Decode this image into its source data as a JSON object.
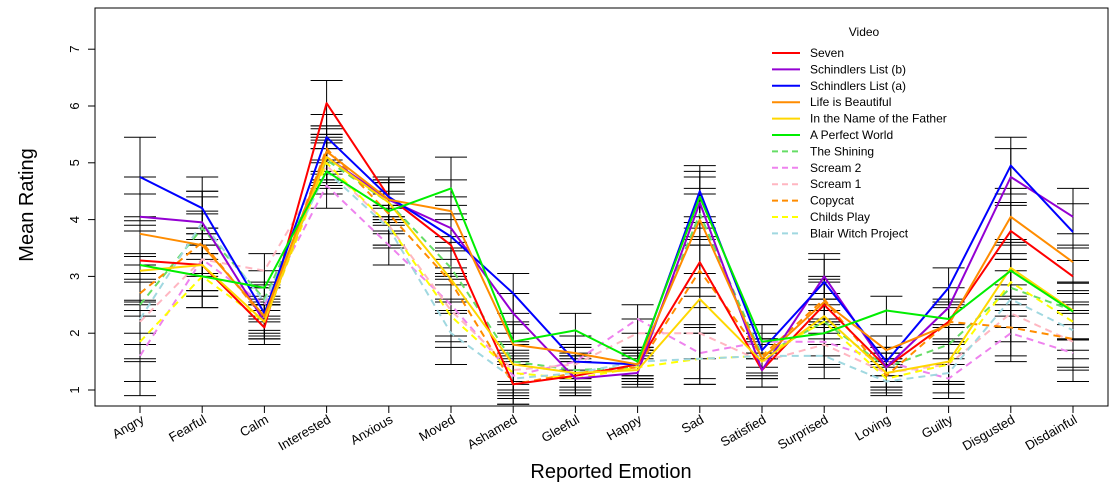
{
  "chart_data": {
    "type": "line",
    "xlabel": "Reported Emotion",
    "ylabel": "Mean Rating",
    "ylim": [
      0.75,
      7.8
    ],
    "yticks": [
      1,
      2,
      3,
      4,
      5,
      6,
      7
    ],
    "categories": [
      "Angry",
      "Fearful",
      "Calm",
      "Interested",
      "Anxious",
      "Moved",
      "Ashamed",
      "Gleeful",
      "Happy",
      "Sad",
      "Satisfied",
      "Surprised",
      "Loving",
      "Guilty",
      "Disgusted",
      "Disdainful"
    ],
    "legend": {
      "title": "Video",
      "position": "top-right"
    },
    "error_bars": true,
    "series": [
      {
        "name": "Seven",
        "color": "#ff0000",
        "dash": "solid",
        "values": [
          3.28,
          3.2,
          2.1,
          6.05,
          4.4,
          3.55,
          1.1,
          1.25,
          1.45,
          3.25,
          1.35,
          2.5,
          1.4,
          2.2,
          3.8,
          3.0
        ]
      },
      {
        "name": "Schindlers List (b)",
        "color": "#9400d3",
        "dash": "solid",
        "values": [
          4.05,
          3.95,
          2.2,
          5.1,
          4.35,
          3.85,
          2.35,
          1.2,
          1.3,
          4.3,
          1.35,
          3.0,
          1.4,
          2.45,
          4.75,
          4.05
        ]
      },
      {
        "name": "Schindlers List (a)",
        "color": "#0000ff",
        "dash": "solid",
        "values": [
          4.75,
          4.2,
          2.35,
          5.45,
          4.4,
          3.7,
          2.7,
          1.5,
          1.45,
          4.5,
          1.7,
          2.9,
          1.5,
          2.8,
          4.95,
          3.78
        ]
      },
      {
        "name": "Life is Beautiful",
        "color": "#ff8c00",
        "dash": "solid",
        "values": [
          3.75,
          3.55,
          2.3,
          5.2,
          4.35,
          4.15,
          1.8,
          1.65,
          1.45,
          4.0,
          1.55,
          2.55,
          1.7,
          2.15,
          4.05,
          3.25
        ]
      },
      {
        "name": "In the Name of the Father",
        "color": "#ffd700",
        "dash": "solid",
        "values": [
          3.1,
          3.2,
          2.2,
          5.1,
          4.3,
          2.95,
          1.45,
          1.3,
          1.35,
          2.6,
          1.5,
          2.3,
          1.3,
          1.5,
          3.15,
          2.4
        ]
      },
      {
        "name": "A Perfect World",
        "color": "#00ee00",
        "dash": "solid",
        "values": [
          3.2,
          3.0,
          2.8,
          4.85,
          4.15,
          4.55,
          1.85,
          2.05,
          1.5,
          4.4,
          1.85,
          2.0,
          2.4,
          2.25,
          3.1,
          2.38
        ]
      },
      {
        "name": "The Shining",
        "color": "#66dd66",
        "dash": "dashed",
        "values": [
          2.5,
          3.85,
          2.6,
          5.05,
          4.3,
          3.15,
          1.5,
          1.35,
          1.4,
          4.1,
          1.6,
          2.2,
          1.4,
          1.8,
          2.8,
          2.4
        ]
      },
      {
        "name": "Scream 2",
        "color": "#ee82ee",
        "dash": "dashed",
        "values": [
          1.6,
          3.3,
          2.5,
          4.6,
          3.55,
          2.5,
          1.25,
          1.5,
          2.25,
          1.65,
          1.85,
          1.85,
          1.5,
          1.2,
          2.0,
          1.65
        ]
      },
      {
        "name": "Scream 1",
        "color": "#ffb6c1",
        "dash": "dashed",
        "values": [
          2.2,
          3.3,
          3.1,
          4.95,
          3.9,
          2.4,
          1.35,
          1.45,
          2.0,
          2.0,
          1.5,
          1.8,
          1.3,
          1.45,
          2.35,
          1.85
        ]
      },
      {
        "name": "Copycat",
        "color": "#ff8c00",
        "dash": "dashed",
        "values": [
          2.7,
          3.6,
          2.25,
          5.25,
          4.1,
          2.9,
          1.1,
          1.3,
          1.4,
          3.1,
          1.6,
          2.6,
          1.25,
          2.2,
          2.1,
          1.9
        ]
      },
      {
        "name": "Childs Play",
        "color": "#ffff00",
        "dash": "dashed",
        "values": [
          1.85,
          3.0,
          2.2,
          5.0,
          3.9,
          2.3,
          1.3,
          1.2,
          1.4,
          1.55,
          1.6,
          2.2,
          1.2,
          1.45,
          2.9,
          2.2
        ]
      },
      {
        "name": "Blair Witch Project",
        "color": "#a0d8e0",
        "dash": "dashed",
        "values": [
          2.25,
          3.95,
          2.55,
          4.85,
          3.85,
          2.0,
          1.2,
          1.3,
          1.5,
          1.55,
          1.6,
          1.6,
          1.15,
          1.3,
          2.6,
          2.05
        ]
      }
    ]
  }
}
